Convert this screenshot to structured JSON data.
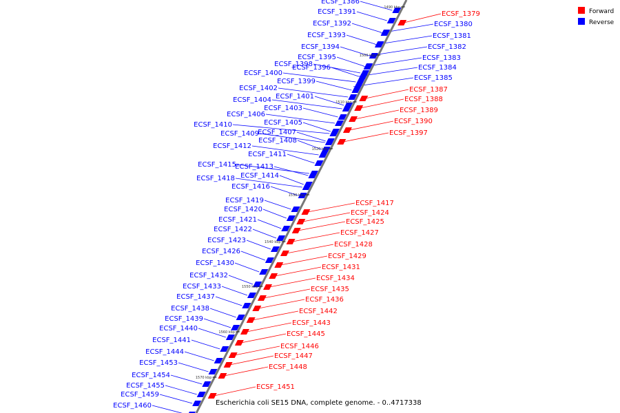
{
  "legend": [
    {
      "label": "Forward",
      "color": "#ff0000"
    },
    {
      "label": "Reverse",
      "color": "#0000ff"
    }
  ],
  "caption": "Escherichia coli SE15 DNA, complete genome. - 0..4717338",
  "ruler_ticks": [
    "1490 kbp",
    "1500 kbp",
    "1510 kbp",
    "1520 kbp",
    "1530 kbp",
    "1540 kbp",
    "1550 kbp",
    "1560 kbp",
    "1570 kbp"
  ],
  "forward_genes": [
    "ECSF_1379",
    "ECSF_1387",
    "ECSF_1388",
    "ECSF_1389",
    "ECSF_1390",
    "ECSF_1397",
    "ECSF_1417",
    "ECSF_1424",
    "ECSF_1425",
    "ECSF_1427",
    "ECSF_1428",
    "ECSF_1429",
    "ECSF_1431",
    "ECSF_1434",
    "ECSF_1435",
    "ECSF_1436",
    "ECSF_1442",
    "ECSF_1443",
    "ECSF_1445",
    "ECSF_1446",
    "ECSF_1447",
    "ECSF_1448",
    "ECSF_1451"
  ],
  "reverse_genes": [
    "ECSF_1380",
    "ECSF_1381",
    "ECSF_1382",
    "ECSF_1383",
    "ECSF_1384",
    "ECSF_1385",
    "ECSF_1386",
    "ECSF_1391",
    "ECSF_1392",
    "ECSF_1393",
    "ECSF_1394",
    "ECSF_1395",
    "ECSF_1396",
    "ECSF_1398",
    "ECSF_1399",
    "ECSF_1400",
    "ECSF_1401",
    "ECSF_1402",
    "ECSF_1403",
    "ECSF_1404",
    "ECSF_1405",
    "ECSF_1406",
    "ECSF_1407",
    "ECSF_1408",
    "ECSF_1409",
    "ECSF_1410",
    "ECSF_1411",
    "ECSF_1412",
    "ECSF_1413",
    "ECSF_1414",
    "ECSF_1415",
    "ECSF_1416",
    "ECSF_1418",
    "ECSF_1419",
    "ECSF_1420",
    "ECSF_1421",
    "ECSF_1422",
    "ECSF_1423",
    "ECSF_1426",
    "ECSF_1430",
    "ECSF_1432",
    "ECSF_1433",
    "ECSF_1437",
    "ECSF_1438",
    "ECSF_1439",
    "ECSF_1440",
    "ECSF_1441",
    "ECSF_1444",
    "ECSF_1453",
    "ECSF_1454",
    "ECSF_1455",
    "ECSF_1459",
    "ECSF_1460"
  ]
}
